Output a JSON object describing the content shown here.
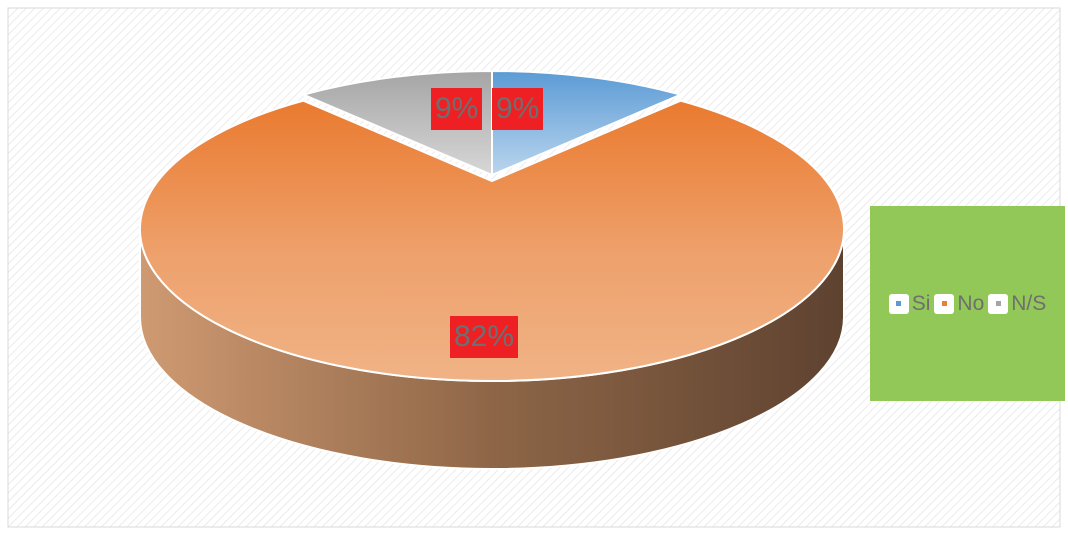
{
  "chart_data": {
    "type": "pie",
    "title": "",
    "categories": [
      "Si",
      "No",
      "N/S"
    ],
    "values": [
      9,
      82,
      9
    ],
    "data_labels": [
      "9%",
      "82%",
      "9%"
    ],
    "colors": [
      "#5b9bd5",
      "#ed7d31",
      "#a5a5a5"
    ],
    "style": "3d",
    "legend_position": "right",
    "legend_background": "#92c857",
    "data_label_background": "#ee2024"
  }
}
